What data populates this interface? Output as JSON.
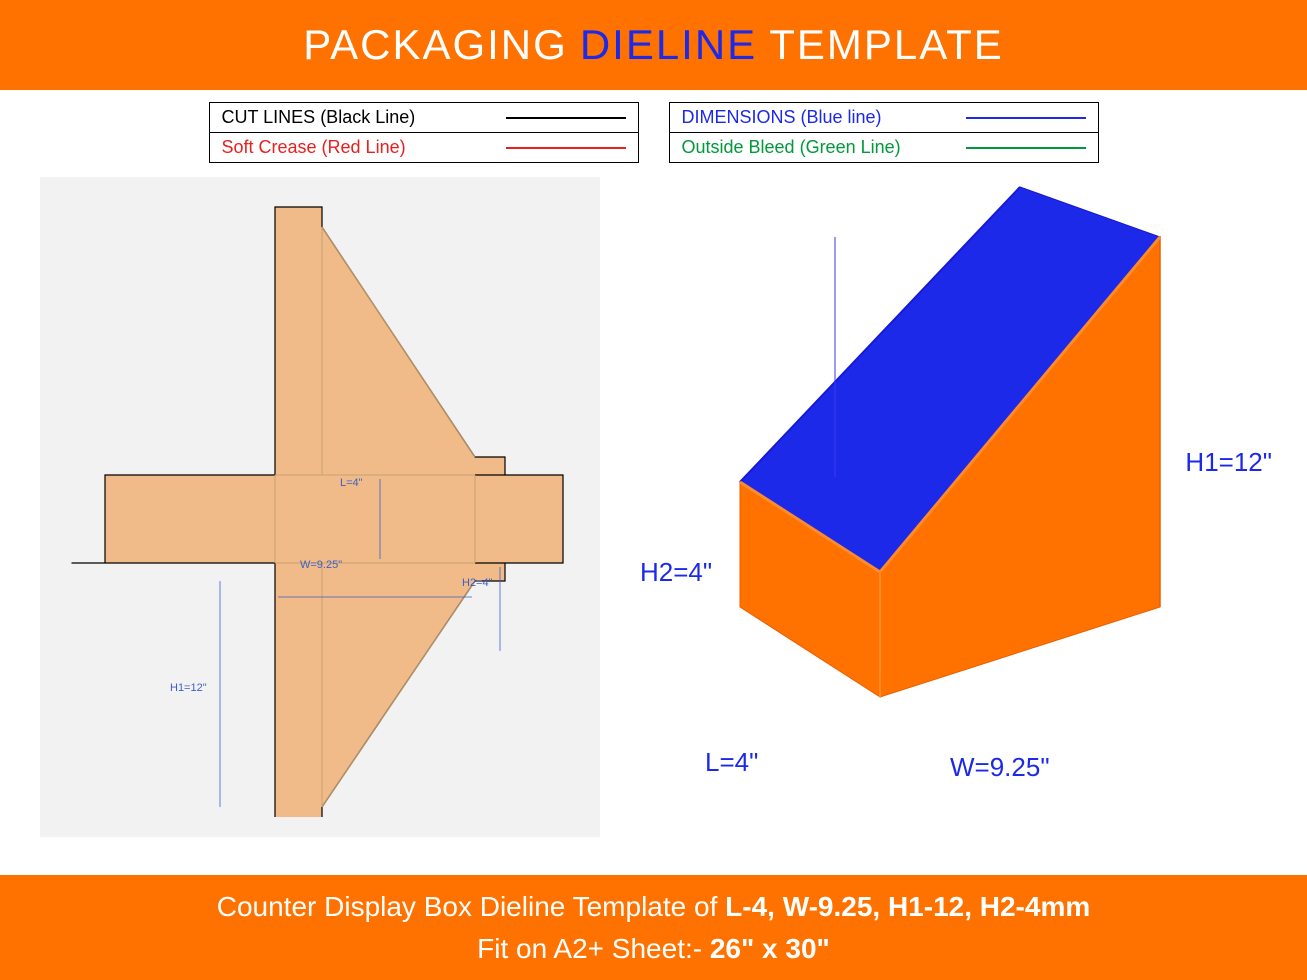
{
  "colors": {
    "orange": "#ff7200",
    "orange_dark": "#e85e00",
    "orange_light": "#ff8a2a",
    "blue": "#1c29e8",
    "blue_dark": "#1818d8",
    "white": "#ffffff",
    "black": "#000000",
    "red": "#e8201e",
    "green": "#009a3a",
    "panel_bg": "#f2f2f2",
    "kraft": "#f0bb88",
    "kraft_stroke": "#c9a070",
    "dim_blue": "#3b5fc9"
  },
  "header": {
    "w1": "PACKAGING",
    "w2": "DIELINE",
    "w3": "TEMPLATE"
  },
  "legend": {
    "left": [
      {
        "label": "CUT LINES (Black Line)",
        "color": "#000000"
      },
      {
        "label": "Soft Crease (Red Line)",
        "color": "#e8201e"
      }
    ],
    "right": [
      {
        "label": "DIMENSIONS (Blue line)",
        "color": "#1c29e8"
      },
      {
        "label": "Outside Bleed (Green Line)",
        "color": "#009a3a"
      }
    ]
  },
  "box3d": {
    "H1": "H1=12\"",
    "H2": "H2=4\"",
    "L": "L=4\"",
    "W": "W=9.25\""
  },
  "dieline_dims": {
    "L": "L=4\"",
    "W": "W=9.25\"",
    "H1": "H1=12\"",
    "H2": "H2=4\""
  },
  "footer": {
    "line1_pre": "Counter Display Box Dieline Template of ",
    "line1_dims": "L-4, W-9.25, H1-12, H2-4mm",
    "line2_pre": "Fit on A2+ Sheet:- ",
    "line2_dims": "26\" x 30\""
  }
}
